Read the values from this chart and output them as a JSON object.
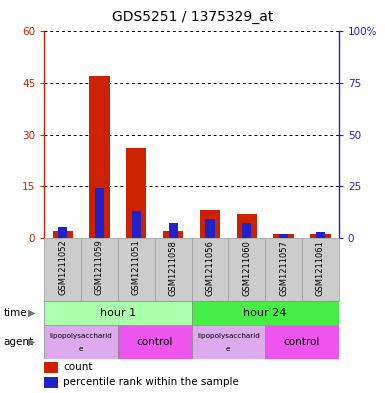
{
  "title": "GDS5251 / 1375329_at",
  "samples": [
    "GSM1211052",
    "GSM1211059",
    "GSM1211051",
    "GSM1211058",
    "GSM1211056",
    "GSM1211060",
    "GSM1211057",
    "GSM1211061"
  ],
  "counts": [
    2,
    47,
    26,
    2,
    8,
    7,
    1,
    1
  ],
  "percentiles": [
    5,
    24,
    13,
    7,
    9,
    7,
    2,
    3
  ],
  "ylim_left": [
    0,
    60
  ],
  "ylim_right": [
    0,
    100
  ],
  "yticks_left": [
    0,
    15,
    30,
    45,
    60
  ],
  "yticks_right": [
    0,
    25,
    50,
    75,
    100
  ],
  "ytick_labels_left": [
    "0",
    "15",
    "30",
    "45",
    "60"
  ],
  "ytick_labels_right": [
    "0",
    "25",
    "50",
    "75",
    "100%"
  ],
  "bar_color_count": "#cc2200",
  "bar_color_pct": "#2222cc",
  "bg_color": "#ffffff",
  "plot_bg": "#ffffff",
  "time_groups": [
    {
      "label": "hour 1",
      "start": 0,
      "end": 4,
      "color": "#aaffaa"
    },
    {
      "label": "hour 24",
      "start": 4,
      "end": 8,
      "color": "#44ee44"
    }
  ],
  "agent_groups": [
    {
      "label": "lipopolysaccharide",
      "start": 0,
      "end": 2,
      "color": "#ddaaee"
    },
    {
      "label": "control",
      "start": 2,
      "end": 4,
      "color": "#ee55ee"
    },
    {
      "label": "lipopolysaccharide",
      "start": 4,
      "end": 6,
      "color": "#ddaaee"
    },
    {
      "label": "control",
      "start": 6,
      "end": 8,
      "color": "#ee55ee"
    }
  ],
  "legend_count_label": "count",
  "legend_pct_label": "percentile rank within the sample",
  "time_label": "time",
  "agent_label": "agent",
  "left_axis_color": "#cc2200",
  "right_axis_color": "#2222cc",
  "sample_bg_color": "#cccccc",
  "sample_border_color": "#999999"
}
